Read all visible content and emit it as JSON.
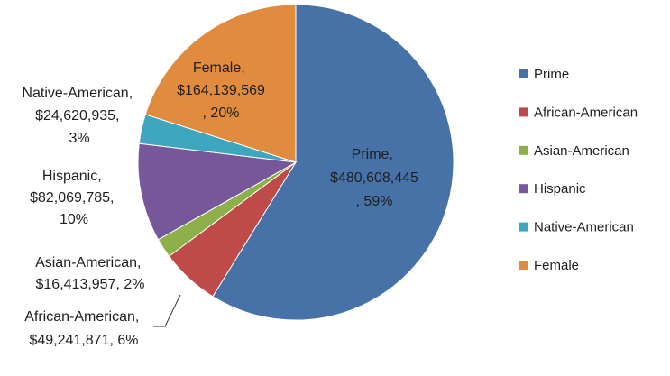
{
  "chart_data": {
    "type": "pie",
    "categories": [
      "Prime",
      "African-American",
      "Asian-American",
      "Hispanic",
      "Native-American",
      "Female"
    ],
    "values": [
      480608445,
      49241871,
      16413957,
      82069785,
      24620935,
      164139569
    ],
    "value_labels": [
      "$480,608,445",
      "$49,241,871",
      "$16,413,957",
      "$82,069,785",
      "$24,620,935",
      "$164,139,569"
    ],
    "percents": [
      59,
      6,
      2,
      10,
      3,
      20
    ],
    "percent_labels": [
      "59%",
      "6%",
      "2%",
      "10%",
      "3%",
      "20%"
    ],
    "separator": ", ",
    "colors": [
      "#4672a8",
      "#be4b48",
      "#8eb04b",
      "#76579a",
      "#3fa6bf",
      "#e08b3d"
    ],
    "legend": "right"
  }
}
